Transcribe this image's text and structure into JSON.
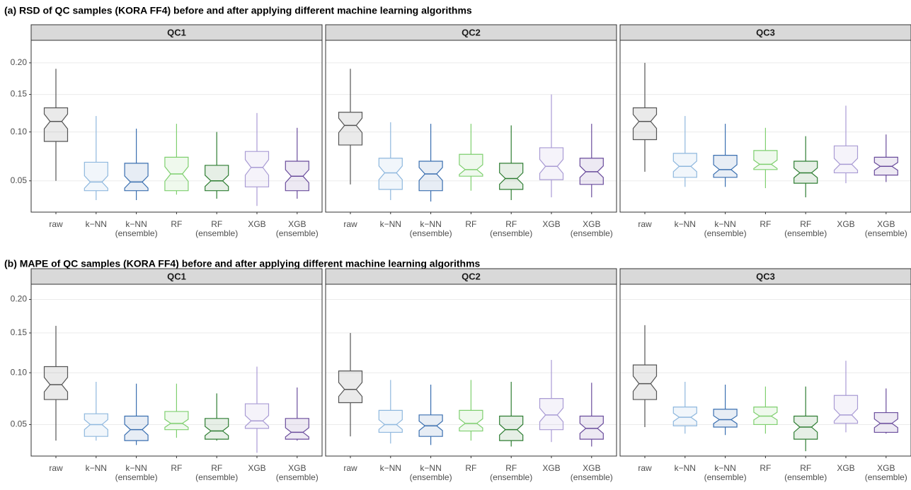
{
  "chart_data": [
    {
      "type": "box",
      "title": "(a) RSD of QC samples (KORA FF4) before and after applying different machine learning algorithms",
      "scale": "sqrt",
      "ylim": [
        0.027,
        0.24
      ],
      "yticks": [
        0.05,
        {
          "value": 0.1,
          "label": "0.10"
        },
        0.15,
        {
          "value": 0.2,
          "label": "0.20"
        }
      ],
      "grid": true,
      "categories": [
        [
          "raw"
        ],
        [
          "k−NN"
        ],
        [
          "k−NN",
          "(ensemble)"
        ],
        [
          "RF"
        ],
        [
          "RF",
          "(ensemble)"
        ],
        [
          "XGB"
        ],
        [
          "XGB",
          "(ensemble)"
        ]
      ],
      "colors": [
        "#555555",
        "#8fb8de",
        "#3a6fb0",
        "#7fcf6f",
        "#2e7d32",
        "#a99bd4",
        "#6a4c9c"
      ],
      "panels": [
        {
          "title": "QC1",
          "min": [
            0.05,
            0.035,
            0.035,
            0.039,
            0.036,
            0.031,
            0.036
          ],
          "q1": [
            0.089,
            0.042,
            0.042,
            0.042,
            0.042,
            0.045,
            0.042
          ],
          "median": [
            0.113,
            0.049,
            0.049,
            0.056,
            0.05,
            0.062,
            0.054
          ],
          "q3": [
            0.131,
            0.067,
            0.066,
            0.072,
            0.064,
            0.078,
            0.068
          ],
          "max": [
            0.19,
            0.12,
            0.104,
            0.11,
            0.1,
            0.124,
            0.105
          ]
        },
        {
          "title": "QC2",
          "min": [
            0.047,
            0.035,
            0.034,
            0.042,
            0.035,
            0.037,
            0.037
          ],
          "q1": [
            0.085,
            0.043,
            0.042,
            0.054,
            0.043,
            0.051,
            0.047
          ],
          "median": [
            0.108,
            0.057,
            0.056,
            0.06,
            0.052,
            0.063,
            0.058
          ],
          "q3": [
            0.125,
            0.071,
            0.068,
            0.075,
            0.066,
            0.082,
            0.071
          ],
          "max": [
            0.19,
            0.112,
            0.11,
            0.11,
            0.108,
            0.15,
            0.11
          ]
        },
        {
          "title": "QC3",
          "min": [
            0.058,
            0.045,
            0.045,
            0.044,
            0.037,
            0.048,
            0.049
          ],
          "q1": [
            0.091,
            0.053,
            0.053,
            0.06,
            0.048,
            0.057,
            0.055
          ],
          "median": [
            0.113,
            0.063,
            0.06,
            0.065,
            0.057,
            0.065,
            0.063
          ],
          "q3": [
            0.131,
            0.076,
            0.074,
            0.079,
            0.068,
            0.084,
            0.072
          ],
          "max": [
            0.2,
            0.12,
            0.11,
            0.105,
            0.095,
            0.134,
            0.097
          ]
        }
      ]
    },
    {
      "type": "box",
      "title": "(b) MAPE of QC samples (KORA FF4) before and after applying different machine learning algorithms",
      "scale": "sqrt",
      "ylim": [
        0.028,
        0.225
      ],
      "yticks": [
        0.05,
        {
          "value": 0.1,
          "label": "0.10"
        },
        0.15,
        {
          "value": 0.2,
          "label": "0.20"
        }
      ],
      "grid": true,
      "categories": [
        [
          "raw"
        ],
        [
          "k−NN"
        ],
        [
          "k−NN",
          "(ensemble)"
        ],
        [
          "RF"
        ],
        [
          "RF",
          "(ensemble)"
        ],
        [
          "XGB"
        ],
        [
          "XGB",
          "(ensemble)"
        ]
      ],
      "colors": [
        "#555555",
        "#8fb8de",
        "#3a6fb0",
        "#7fcf6f",
        "#2e7d32",
        "#a99bd4",
        "#6a4c9c"
      ],
      "panels": [
        {
          "title": "QC1",
          "min": [
            0.038,
            0.038,
            0.035,
            0.04,
            0.038,
            0.03,
            0.038
          ],
          "q1": [
            0.072,
            0.041,
            0.038,
            0.046,
            0.039,
            0.047,
            0.039
          ],
          "median": [
            0.087,
            0.05,
            0.046,
            0.051,
            0.045,
            0.053,
            0.044
          ],
          "q3": [
            0.107,
            0.059,
            0.057,
            0.061,
            0.055,
            0.068,
            0.055
          ],
          "max": [
            0.16,
            0.09,
            0.088,
            0.088,
            0.078,
            0.107,
            0.084
          ]
        },
        {
          "title": "QC2",
          "min": [
            0.041,
            0.036,
            0.035,
            0.038,
            0.034,
            0.037,
            0.034
          ],
          "q1": [
            0.069,
            0.044,
            0.041,
            0.045,
            0.038,
            0.046,
            0.039
          ],
          "median": [
            0.082,
            0.05,
            0.049,
            0.051,
            0.046,
            0.058,
            0.047
          ],
          "q3": [
            0.102,
            0.062,
            0.058,
            0.062,
            0.057,
            0.073,
            0.057
          ],
          "max": [
            0.15,
            0.092,
            0.087,
            0.092,
            0.09,
            0.115,
            0.089
          ]
        },
        {
          "title": "QC3",
          "min": [
            0.048,
            0.043,
            0.042,
            0.043,
            0.031,
            0.044,
            0.043
          ],
          "q1": [
            0.072,
            0.049,
            0.048,
            0.05,
            0.039,
            0.051,
            0.044
          ],
          "median": [
            0.088,
            0.056,
            0.054,
            0.057,
            0.048,
            0.058,
            0.051
          ],
          "q3": [
            0.109,
            0.065,
            0.063,
            0.065,
            0.057,
            0.076,
            0.06
          ],
          "max": [
            0.161,
            0.09,
            0.087,
            0.085,
            0.085,
            0.114,
            0.083
          ]
        }
      ]
    }
  ]
}
